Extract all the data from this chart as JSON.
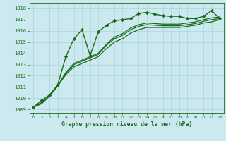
{
  "title": "Graphe pression niveau de la mer (hPa)",
  "background_color": "#cce9f0",
  "grid_color": "#aad4dc",
  "line_color": "#1a6b1a",
  "marker_color": "#1a6b1a",
  "xlim": [
    -0.5,
    23.5
  ],
  "ylim": [
    1008.7,
    1018.5
  ],
  "yticks": [
    1009,
    1010,
    1011,
    1012,
    1013,
    1014,
    1015,
    1016,
    1017,
    1018
  ],
  "xticks": [
    0,
    1,
    2,
    3,
    4,
    5,
    6,
    7,
    8,
    9,
    10,
    11,
    12,
    13,
    14,
    15,
    16,
    17,
    18,
    19,
    20,
    21,
    22,
    23
  ],
  "series": [
    {
      "x": [
        0,
        1,
        2,
        3,
        4,
        5,
        6,
        7,
        8,
        9,
        10,
        11,
        12,
        13,
        14,
        15,
        16,
        17,
        18,
        19,
        20,
        21,
        22,
        23
      ],
      "y": [
        1009.2,
        1009.8,
        1010.3,
        1011.2,
        1013.7,
        1015.3,
        1016.1,
        1013.8,
        1015.9,
        1016.5,
        1016.9,
        1017.0,
        1017.1,
        1017.55,
        1017.65,
        1017.5,
        1017.35,
        1017.3,
        1017.3,
        1017.1,
        1017.1,
        1017.3,
        1017.8,
        1017.1
      ],
      "marker": "D",
      "linewidth": 1.0,
      "markersize": 2.2,
      "zorder": 5
    },
    {
      "x": [
        0,
        1,
        2,
        3,
        4,
        5,
        6,
        7,
        8,
        9,
        10,
        11,
        12,
        13,
        14,
        15,
        16,
        17,
        18,
        19,
        20,
        21,
        22,
        23
      ],
      "y": [
        1009.2,
        1009.5,
        1010.2,
        1011.1,
        1012.1,
        1012.8,
        1013.1,
        1013.4,
        1013.7,
        1014.4,
        1015.0,
        1015.3,
        1015.8,
        1016.1,
        1016.3,
        1016.3,
        1016.3,
        1016.3,
        1016.3,
        1016.4,
        1016.5,
        1016.7,
        1016.8,
        1017.0
      ],
      "marker": null,
      "linewidth": 0.9,
      "markersize": 0,
      "zorder": 3
    },
    {
      "x": [
        0,
        1,
        2,
        3,
        4,
        5,
        6,
        7,
        8,
        9,
        10,
        11,
        12,
        13,
        14,
        15,
        16,
        17,
        18,
        19,
        20,
        21,
        22,
        23
      ],
      "y": [
        1009.2,
        1009.6,
        1010.2,
        1011.1,
        1012.2,
        1013.0,
        1013.3,
        1013.6,
        1013.9,
        1014.7,
        1015.3,
        1015.6,
        1016.1,
        1016.4,
        1016.55,
        1016.5,
        1016.45,
        1016.45,
        1016.45,
        1016.55,
        1016.65,
        1016.85,
        1017.0,
        1017.1
      ],
      "marker": null,
      "linewidth": 0.9,
      "markersize": 0,
      "zorder": 3
    },
    {
      "x": [
        0,
        1,
        2,
        3,
        4,
        5,
        6,
        7,
        8,
        9,
        10,
        11,
        12,
        13,
        14,
        15,
        16,
        17,
        18,
        19,
        20,
        21,
        22,
        23
      ],
      "y": [
        1009.2,
        1009.6,
        1010.2,
        1011.1,
        1012.3,
        1013.1,
        1013.4,
        1013.7,
        1014.0,
        1014.8,
        1015.45,
        1015.75,
        1016.25,
        1016.55,
        1016.7,
        1016.65,
        1016.6,
        1016.6,
        1016.6,
        1016.7,
        1016.8,
        1017.0,
        1017.15,
        1017.25
      ],
      "marker": null,
      "linewidth": 0.9,
      "markersize": 0,
      "zorder": 3
    }
  ]
}
